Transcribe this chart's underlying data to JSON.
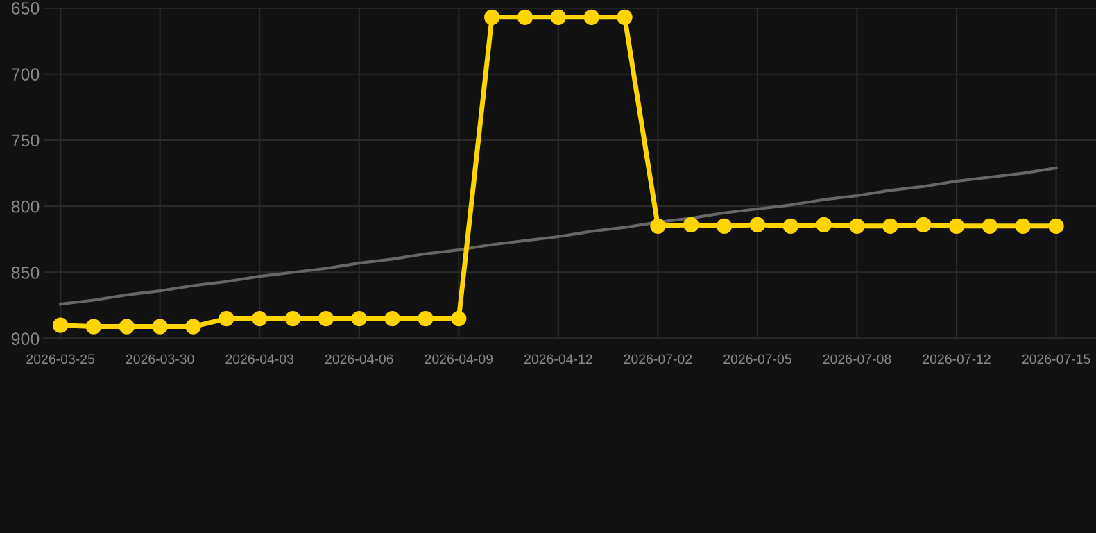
{
  "chart_data": {
    "type": "line",
    "categories": [
      "2026-03-25",
      null,
      null,
      "2026-03-30",
      null,
      null,
      "2026-04-03",
      null,
      null,
      "2026-04-06",
      null,
      null,
      "2026-04-09",
      null,
      null,
      "2026-04-12",
      null,
      null,
      "2026-07-02",
      null,
      null,
      "2026-07-05",
      null,
      null,
      "2026-07-08",
      null,
      null,
      "2026-07-12",
      null,
      null,
      "2026-07-15"
    ],
    "series": [
      {
        "color": "#ffd400",
        "marker": "circle",
        "values": [
          890,
          891,
          891,
          891,
          891,
          885,
          885,
          885,
          885,
          885,
          885,
          885,
          885,
          657,
          657,
          657,
          657,
          657,
          815,
          814,
          815,
          814,
          815,
          814,
          815,
          815,
          814,
          815,
          815,
          815,
          815
        ]
      },
      {
        "type": "line",
        "color": "#666666",
        "marker": "none",
        "values": [
          874,
          871,
          867,
          864,
          860,
          857,
          853,
          850,
          847,
          843,
          840,
          836,
          833,
          829,
          826,
          823,
          819,
          816,
          812,
          809,
          805,
          802,
          799,
          795,
          792,
          788,
          785,
          781,
          778,
          775,
          771
        ]
      }
    ],
    "ylim": [
      900,
      650
    ],
    "yticks": [
      650,
      700,
      750,
      800,
      850,
      900
    ],
    "grid": true
  }
}
